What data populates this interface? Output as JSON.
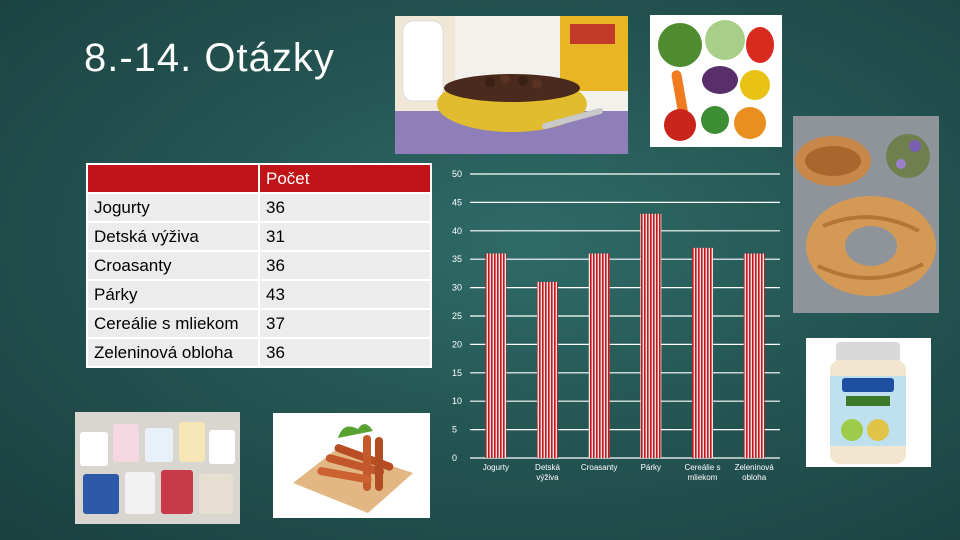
{
  "slide": {
    "title": "8.-14. Otázky"
  },
  "table": {
    "header": [
      "",
      "Počet"
    ],
    "rows": [
      {
        "label": "Jogurty",
        "value": "36"
      },
      {
        "label": "Detská výživa",
        "value": "31"
      },
      {
        "label": "Croasanty",
        "value": "36"
      },
      {
        "label": "Párky",
        "value": "43"
      },
      {
        "label": "Cereálie s mliekom",
        "value": "37"
      },
      {
        "label": "Zeleninová obloha",
        "value": "36"
      }
    ]
  },
  "chart_data": {
    "type": "bar",
    "categories": [
      "Jogurty",
      "Detská výživa",
      "Croasanty",
      "Párky",
      "Cereálie s mliekom",
      "Zeleninová obloha"
    ],
    "category_lines": [
      [
        "Jogurty"
      ],
      [
        "Detská",
        "výživa"
      ],
      [
        "Croasanty"
      ],
      [
        "Párky"
      ],
      [
        "Cereálie s",
        "mliekom"
      ],
      [
        "Zeleninová",
        "obloha"
      ]
    ],
    "values": [
      36,
      31,
      36,
      43,
      37,
      36
    ],
    "ylim": [
      0,
      50
    ],
    "yticks": [
      0,
      5,
      10,
      15,
      20,
      25,
      30,
      35,
      40,
      45,
      50
    ],
    "grid": true,
    "bar_color": "#c0181c",
    "bar_pattern": "vertical-stripes"
  },
  "images": {
    "cereal": "cereal-photo",
    "vegetables": "vegetables-photo",
    "pastry": "pastry-photo",
    "baby_food": "baby-food-jar-photo",
    "yogurts": "yogurts-photo",
    "sausages": "sausages-photo"
  },
  "colors": {
    "background": "#245653",
    "table_header": "#c01418",
    "table_cell": "#ececec"
  }
}
